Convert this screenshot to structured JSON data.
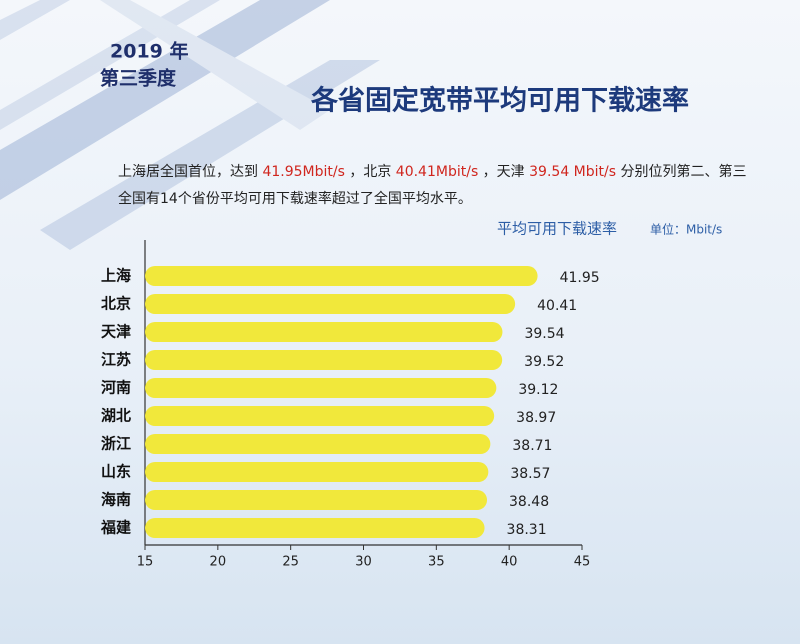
{
  "header": {
    "year": "2019 年",
    "quarter": "第三季度",
    "title": "各省固定宽带平均可用下载速率"
  },
  "intro": {
    "line1": [
      {
        "text": "上海居全国首位，达到 ",
        "color": "#222222"
      },
      {
        "text": "41.95Mbit/s",
        "color": "#d0261e"
      },
      {
        "text": " ，北京 ",
        "color": "#222222"
      },
      {
        "text": "40.41Mbit/s",
        "color": "#d0261e"
      },
      {
        "text": " ，天津 ",
        "color": "#222222"
      },
      {
        "text": "39.54 Mbit/s",
        "color": "#d0261e"
      },
      {
        "text": " 分别位列第二、第三",
        "color": "#222222"
      }
    ],
    "line2": "全国有14个省份平均可用下载速率超过了全国平均水平。"
  },
  "chart_data": {
    "type": "bar",
    "orientation": "horizontal",
    "title": "平均可用下载速率",
    "unit": "单位：Mbit/s",
    "categories": [
      "上海",
      "北京",
      "天津",
      "江苏",
      "河南",
      "湖北",
      "浙江",
      "山东",
      "海南",
      "福建"
    ],
    "values": [
      41.95,
      40.41,
      39.54,
      39.52,
      39.12,
      38.97,
      38.71,
      38.57,
      38.48,
      38.31
    ],
    "color": "#f1e83b",
    "xlim": [
      15,
      45
    ],
    "xticks": [
      15,
      20,
      25,
      30,
      35,
      40,
      45
    ]
  }
}
